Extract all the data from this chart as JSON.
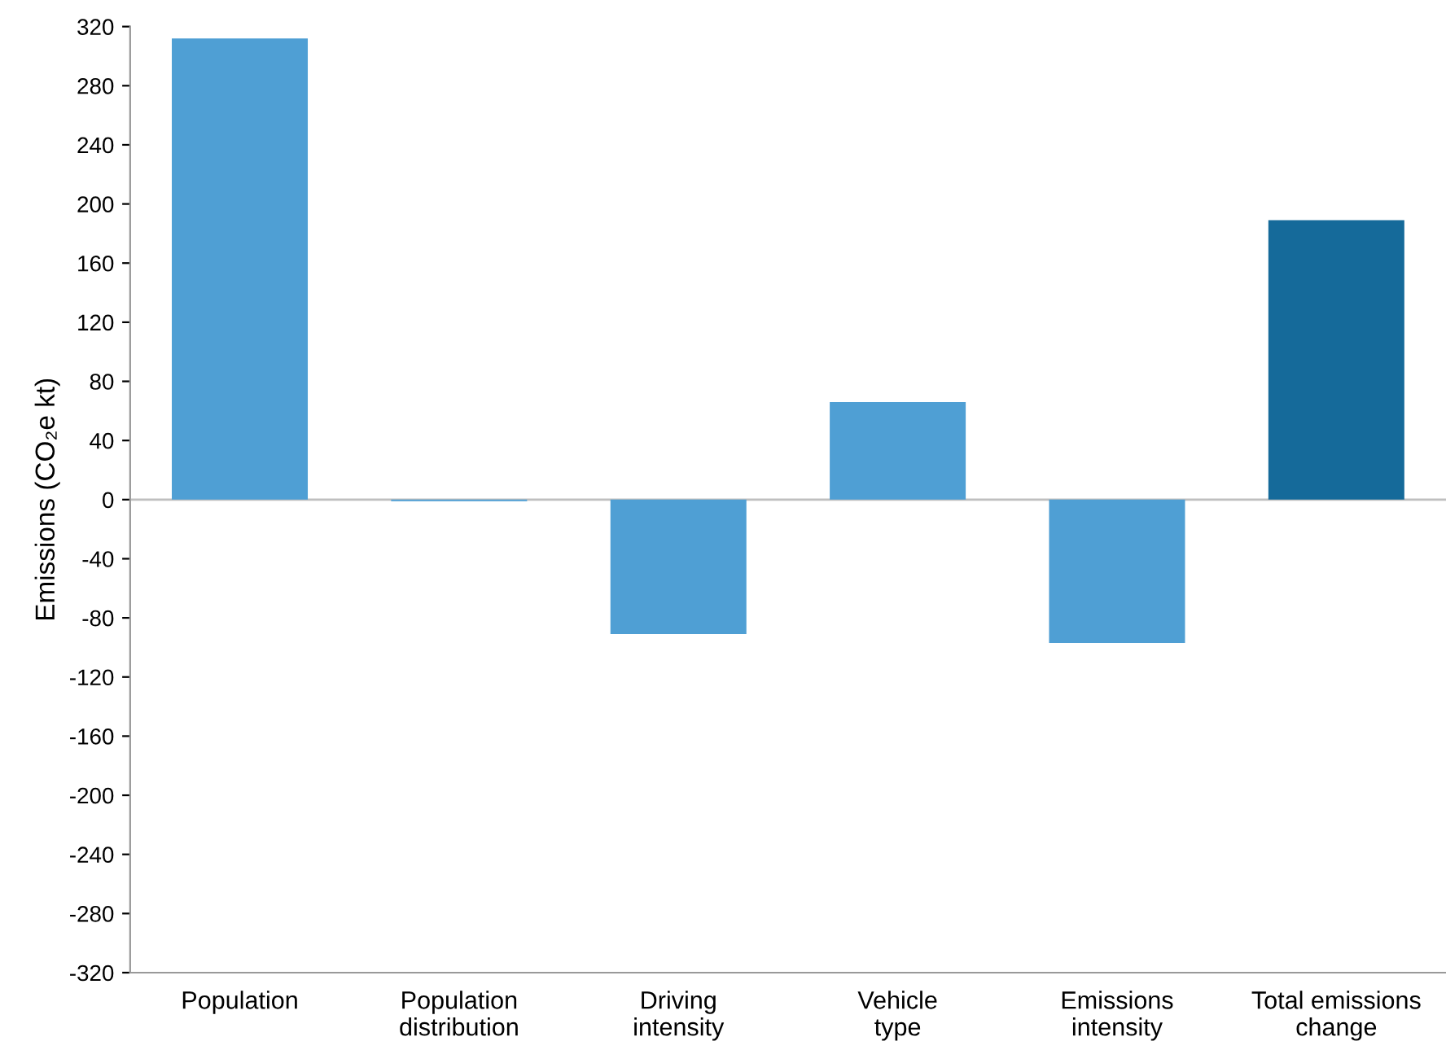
{
  "chart_data": {
    "type": "bar",
    "ylabel": "Emissions (CO₂e kt)",
    "categories": [
      "Population",
      "Population\ndistribution",
      "Driving\nintensity",
      "Vehicle\ntype",
      "Emissions\nintensity",
      "Total emissions\nchange"
    ],
    "values": [
      312,
      -1,
      -91,
      66,
      -97,
      189
    ],
    "colors": [
      "#4f9fd4",
      "#4f9fd4",
      "#4f9fd4",
      "#4f9fd4",
      "#4f9fd4",
      "#156a9a"
    ],
    "ylim": [
      -320,
      320
    ],
    "yticks": [
      -320,
      -280,
      -240,
      -200,
      -160,
      -120,
      -80,
      -40,
      0,
      40,
      80,
      120,
      160,
      200,
      240,
      280,
      320
    ],
    "ref_lines": [
      {
        "axis": "y",
        "value": 0,
        "color": "#bfbfbf"
      }
    ],
    "grid": false,
    "legend": false
  }
}
